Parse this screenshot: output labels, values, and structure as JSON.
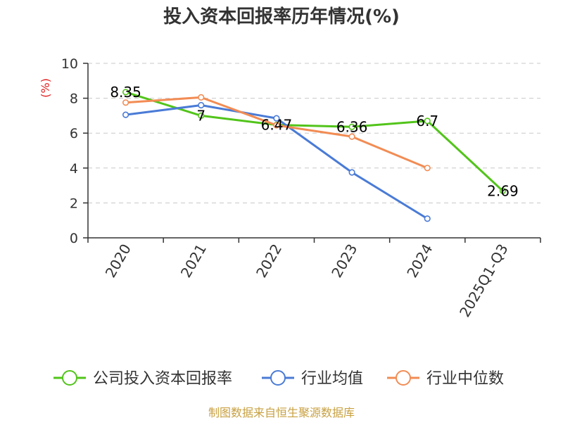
{
  "chart_data": {
    "type": "line",
    "title": "投入资本回报率历年情况(%)",
    "ylabel": "(%)",
    "xlabel": "",
    "categories": [
      "2020",
      "2021",
      "2022",
      "2023",
      "2024",
      "2025Q1-Q3"
    ],
    "ylim": [
      0,
      10
    ],
    "yticks": [
      0,
      2,
      4,
      6,
      8,
      10
    ],
    "grid": true,
    "legend_position": "bottom",
    "series": [
      {
        "name": "公司投入资本回报率",
        "color": "#52c41a",
        "values": [
          8.35,
          7,
          6.47,
          6.36,
          6.7,
          2.69
        ],
        "labels": [
          "8.35",
          "7",
          "6.47",
          "6.36",
          "6.7",
          "2.69"
        ]
      },
      {
        "name": "行业均值",
        "color": "#4a7bd6",
        "values": [
          7.05,
          7.6,
          6.85,
          3.75,
          1.1,
          null
        ]
      },
      {
        "name": "行业中位数",
        "color": "#f28c54",
        "values": [
          7.75,
          8.05,
          6.45,
          5.8,
          4.0,
          null
        ]
      }
    ],
    "source": "制图数据来自恒生聚源数据库"
  }
}
